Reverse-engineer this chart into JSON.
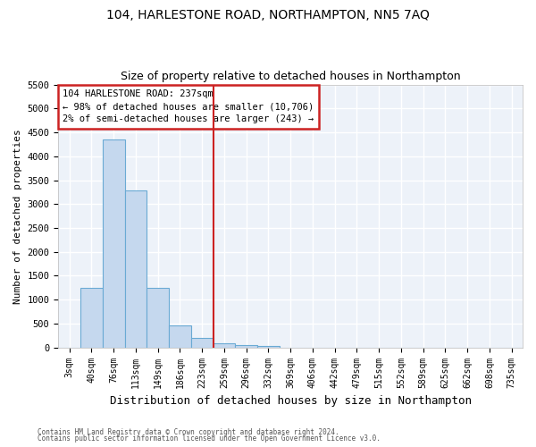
{
  "title1": "104, HARLESTONE ROAD, NORTHAMPTON, NN5 7AQ",
  "title2": "Size of property relative to detached houses in Northampton",
  "xlabel": "Distribution of detached houses by size in Northampton",
  "ylabel": "Number of detached properties",
  "categories": [
    "3sqm",
    "40sqm",
    "76sqm",
    "113sqm",
    "149sqm",
    "186sqm",
    "223sqm",
    "259sqm",
    "296sqm",
    "332sqm",
    "369sqm",
    "406sqm",
    "442sqm",
    "479sqm",
    "515sqm",
    "552sqm",
    "589sqm",
    "625sqm",
    "662sqm",
    "698sqm",
    "735sqm"
  ],
  "values": [
    0,
    1250,
    4350,
    3280,
    1250,
    460,
    200,
    90,
    55,
    30,
    0,
    0,
    0,
    0,
    0,
    0,
    0,
    0,
    0,
    0,
    0
  ],
  "bar_color": "#c5d8ee",
  "bar_edge_color": "#6aaad4",
  "vline_x_index": 6.5,
  "vline_color": "#cc2222",
  "annotation_line1": "104 HARLESTONE ROAD: 237sqm",
  "annotation_line2": "← 98% of detached houses are smaller (10,706)",
  "annotation_line3": "2% of semi-detached houses are larger (243) →",
  "annotation_box_color": "#cc2222",
  "ylim": [
    0,
    5500
  ],
  "yticks": [
    0,
    500,
    1000,
    1500,
    2000,
    2500,
    3000,
    3500,
    4000,
    4500,
    5000,
    5500
  ],
  "bg_color": "#edf2f9",
  "grid_color": "#ffffff",
  "fig_bg": "#ffffff",
  "footer1": "Contains HM Land Registry data © Crown copyright and database right 2024.",
  "footer2": "Contains public sector information licensed under the Open Government Licence v3.0.",
  "title1_fontsize": 10,
  "title2_fontsize": 9
}
